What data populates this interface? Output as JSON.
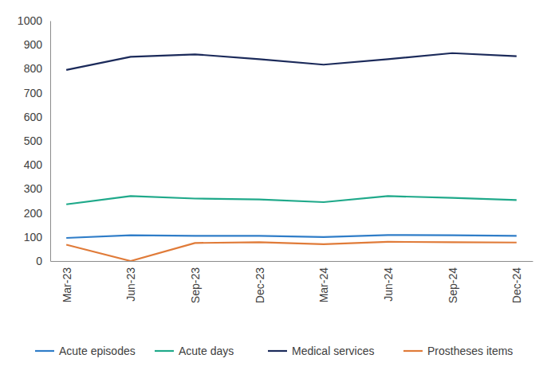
{
  "chart_data": {
    "type": "line",
    "categories": [
      "Mar-23",
      "Jun-23",
      "Sep-23",
      "Dec-23",
      "Mar-24",
      "Jun-24",
      "Sep-24",
      "Dec-24"
    ],
    "series": [
      {
        "name": "Acute episodes",
        "color": "#2f7dc8",
        "values": [
          96,
          107,
          105,
          105,
          100,
          108,
          107,
          105
        ]
      },
      {
        "name": "Acute days",
        "color": "#1fa98a",
        "values": [
          236,
          270,
          260,
          256,
          245,
          270,
          263,
          254
        ]
      },
      {
        "name": "Medical services",
        "color": "#1b2a5a",
        "values": [
          795,
          850,
          860,
          840,
          817,
          840,
          865,
          852
        ]
      },
      {
        "name": "Prostheses items",
        "color": "#e07b39",
        "values": [
          68,
          0,
          75,
          78,
          70,
          80,
          78,
          77
        ]
      }
    ],
    "ylim": [
      0,
      1000
    ],
    "yticks": [
      0,
      100,
      200,
      300,
      400,
      500,
      600,
      700,
      800,
      900,
      1000
    ],
    "grid": false,
    "legend": "bottom"
  }
}
